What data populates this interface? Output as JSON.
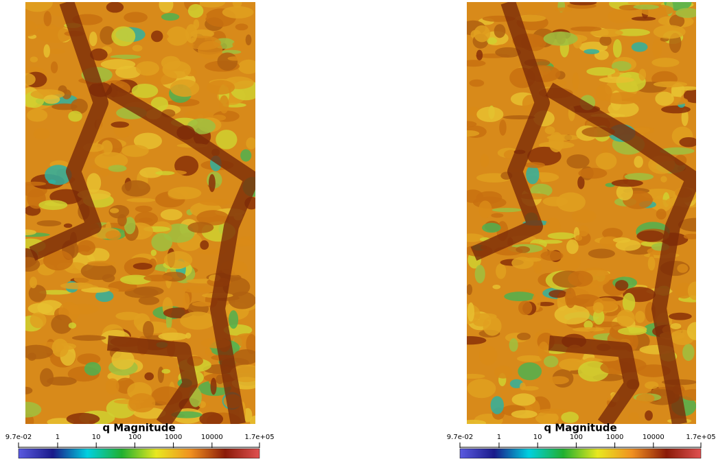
{
  "panels": [
    {
      "colorbar": {
        "title": "q Magnitude",
        "scale": "log",
        "lim": [
          0.097,
          170000
        ],
        "ticks": [
          {
            "value": 0.097,
            "label": "9.7e-02"
          },
          1,
          10,
          100,
          1000,
          10000,
          {
            "value": 170000,
            "label": "1.7e+05"
          }
        ],
        "colors": [
          "#5a5ae0",
          "#1a1a8a",
          "#00d0e0",
          "#20b030",
          "#e8e820",
          "#f09020",
          "#8a1a08",
          "#e05050"
        ]
      }
    },
    {
      "colorbar": {
        "title": "q Magnitude",
        "scale": "log",
        "lim": [
          0.097,
          170000
        ],
        "ticks": [
          {
            "value": 0.097,
            "label": "9.7e-02"
          },
          1,
          10,
          100,
          1000,
          10000,
          {
            "value": 170000,
            "label": "1.7e+05"
          }
        ],
        "colors": [
          "#5a5ae0",
          "#1a1a8a",
          "#00d0e0",
          "#20b030",
          "#e8e820",
          "#f09020",
          "#8a1a08",
          "#e05050"
        ]
      }
    }
  ]
}
